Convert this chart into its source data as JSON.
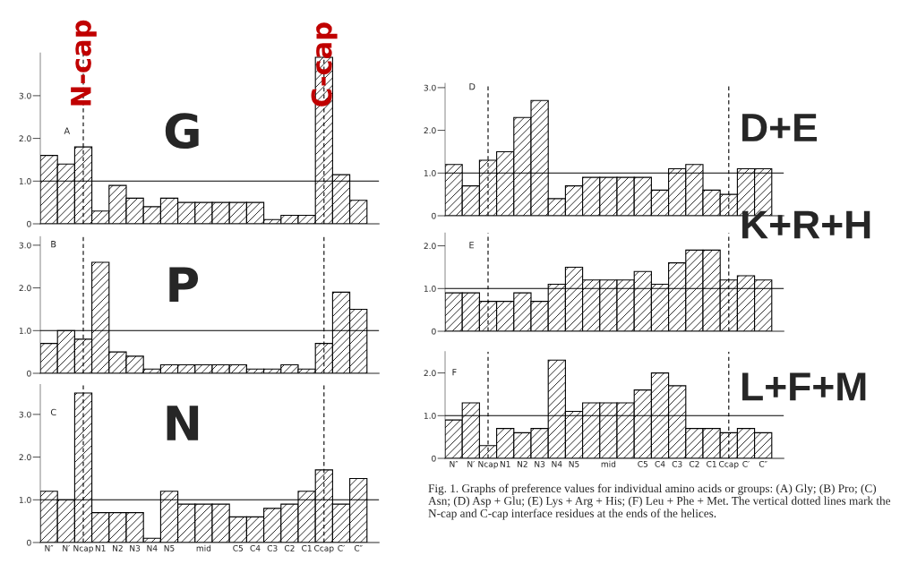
{
  "chart_data": [
    {
      "type": "bar",
      "categories": [
        "N″",
        "N′",
        "Ncap",
        "N1",
        "N2",
        "N3",
        "N4",
        "N5",
        null,
        "mid",
        null,
        "C5",
        "C4",
        "C3",
        "C2",
        "C1",
        "Ccap",
        "C′",
        "C″"
      ],
      "values": [
        1.6,
        1.4,
        1.8,
        0.3,
        0.9,
        0.6,
        0.4,
        0.6,
        0.5,
        0.5,
        0.5,
        0.5,
        0.5,
        0.1,
        0.2,
        0.2,
        3.9,
        1.15,
        0.55
      ],
      "ylim": [
        0,
        4
      ],
      "yticks": [
        0,
        {
          "value": 1,
          "label": "1.0"
        },
        {
          "value": 2,
          "label": "2.0"
        },
        {
          "value": 3,
          "label": "3.0"
        }
      ],
      "tick_labels": "y",
      "ref_lines": [
        {
          "axis": "x",
          "value": "Ncap",
          "label": "N-cap",
          "line_style": "dashed"
        },
        {
          "axis": "x",
          "value": "Ccap",
          "label": "C-cap",
          "line_style": "dashed"
        },
        {
          "axis": "y",
          "value": 1,
          "line_style": "solid"
        }
      ],
      "annotations": [
        "A",
        "G"
      ]
    },
    {
      "type": "bar",
      "categories": [
        "N″",
        "N′",
        "Ncap",
        "N1",
        "N2",
        "N3",
        "N4",
        "N5",
        null,
        "mid",
        null,
        "C5",
        "C4",
        "C3",
        "C2",
        "C1",
        "Ccap",
        "C′",
        "C″"
      ],
      "values": [
        0.7,
        1.0,
        0.8,
        2.6,
        0.5,
        0.4,
        0.1,
        0.2,
        0.2,
        0.2,
        0.2,
        0.2,
        0.1,
        0.1,
        0.2,
        0.1,
        0.7,
        1.9,
        1.5
      ],
      "ylim": [
        0,
        3.2
      ],
      "yticks": [
        0,
        {
          "value": 1,
          "label": "1.0"
        },
        {
          "value": 2,
          "label": "2.0"
        },
        {
          "value": 3,
          "label": "3.0"
        }
      ],
      "tick_labels": "y",
      "ref_lines": [
        {
          "axis": "x",
          "value": "Ncap",
          "line_style": "dashed"
        },
        {
          "axis": "x",
          "value": "Ccap",
          "line_style": "dashed"
        },
        {
          "axis": "y",
          "value": 1,
          "line_style": "solid"
        }
      ],
      "annotations": [
        "B",
        "P"
      ]
    },
    {
      "type": "bar",
      "categories": [
        "N″",
        "N′",
        "Ncap",
        "N1",
        "N2",
        "N3",
        "N4",
        "N5",
        null,
        "mid",
        null,
        "C5",
        "C4",
        "C3",
        "C2",
        "C1",
        "Ccap",
        "C′",
        "C″"
      ],
      "values": [
        1.2,
        1.0,
        3.5,
        0.7,
        0.7,
        0.7,
        0.1,
        1.2,
        0.9,
        0.9,
        0.9,
        0.6,
        0.6,
        0.8,
        0.9,
        1.2,
        1.7,
        0.9,
        1.5
      ],
      "ylim": [
        0,
        3.7
      ],
      "yticks": [
        0,
        {
          "value": 1,
          "label": "1.0"
        },
        {
          "value": 2,
          "label": "2.0"
        },
        {
          "value": 3,
          "label": "3.0"
        }
      ],
      "ref_lines": [
        {
          "axis": "x",
          "value": "Ncap",
          "line_style": "dashed"
        },
        {
          "axis": "x",
          "value": "Ccap",
          "line_style": "dashed"
        },
        {
          "axis": "y",
          "value": 1,
          "line_style": "solid"
        }
      ],
      "annotations": [
        "C",
        "N"
      ]
    },
    {
      "type": "bar",
      "categories": [
        "N″",
        "N′",
        "Ncap",
        "N1",
        "N2",
        "N3",
        "N4",
        "N5",
        null,
        "mid",
        null,
        "C5",
        "C4",
        "C3",
        "C2",
        "C1",
        "Ccap",
        "C′",
        "C″"
      ],
      "values": [
        1.2,
        0.7,
        1.3,
        1.5,
        2.3,
        2.7,
        0.4,
        0.7,
        0.9,
        0.9,
        0.9,
        0.9,
        0.6,
        1.1,
        1.2,
        0.6,
        0.5,
        1.1,
        1.1
      ],
      "ylim": [
        0,
        3.1
      ],
      "yticks": [
        0,
        {
          "value": 1,
          "label": "1.0"
        },
        {
          "value": 2,
          "label": "2.0"
        },
        {
          "value": 3,
          "label": "3.0"
        }
      ],
      "tick_labels": "y",
      "ref_lines": [
        {
          "axis": "x",
          "value": "Ncap",
          "line_style": "dashed"
        },
        {
          "axis": "x",
          "value": "Ccap",
          "line_style": "dashed"
        },
        {
          "axis": "y",
          "value": 1,
          "line_style": "solid"
        }
      ],
      "annotations": [
        "D",
        "D+E"
      ]
    },
    {
      "type": "bar",
      "categories": [
        "N″",
        "N′",
        "Ncap",
        "N1",
        "N2",
        "N3",
        "N4",
        "N5",
        null,
        "mid",
        null,
        "C5",
        "C4",
        "C3",
        "C2",
        "C1",
        "Ccap",
        "C′",
        "C″"
      ],
      "values": [
        0.9,
        0.9,
        0.7,
        0.7,
        0.9,
        0.7,
        1.1,
        1.5,
        1.2,
        1.2,
        1.2,
        1.4,
        1.1,
        1.6,
        1.9,
        1.9,
        1.2,
        1.3,
        1.2
      ],
      "ylim": [
        0,
        2.3
      ],
      "yticks": [
        0,
        {
          "value": 1,
          "label": "1.0"
        },
        {
          "value": 2,
          "label": "2.0"
        }
      ],
      "tick_labels": "y",
      "ref_lines": [
        {
          "axis": "x",
          "value": "Ncap",
          "line_style": "dashed"
        },
        {
          "axis": "x",
          "value": "Ccap",
          "line_style": "dashed"
        },
        {
          "axis": "y",
          "value": 1,
          "line_style": "solid"
        }
      ],
      "annotations": [
        "E",
        "K+R+H"
      ]
    },
    {
      "type": "bar",
      "categories": [
        "N″",
        "N′",
        "Ncap",
        "N1",
        "N2",
        "N3",
        "N4",
        "N5",
        null,
        "mid",
        null,
        "C5",
        "C4",
        "C3",
        "C2",
        "C1",
        "Ccap",
        "C′",
        "C″"
      ],
      "values": [
        0.9,
        1.3,
        0.3,
        0.7,
        0.6,
        0.7,
        2.3,
        1.1,
        1.3,
        1.3,
        1.3,
        1.6,
        2.0,
        1.7,
        0.7,
        0.7,
        0.6,
        0.7,
        0.6
      ],
      "ylim": [
        0,
        2.5
      ],
      "yticks": [
        0,
        {
          "value": 1,
          "label": "1.0"
        },
        {
          "value": 2,
          "label": "2.0"
        }
      ],
      "ref_lines": [
        {
          "axis": "x",
          "value": "Ncap",
          "line_style": "dashed"
        },
        {
          "axis": "x",
          "value": "Ccap",
          "line_style": "dashed"
        },
        {
          "axis": "y",
          "value": 1,
          "line_style": "solid"
        }
      ],
      "annotations": [
        "F",
        "L+F+M",
        "Fig. 1. Graphs of preference values for individual amino acids or groups: (A) Gly; (B) Pro; (C) Asn; (D) Asp + Glu; (E) Lys + Arg + His; (F) Leu + Phe + Met. The vertical dotted lines mark the N-cap and C-cap interface residues at the ends of the helices."
      ]
    }
  ]
}
